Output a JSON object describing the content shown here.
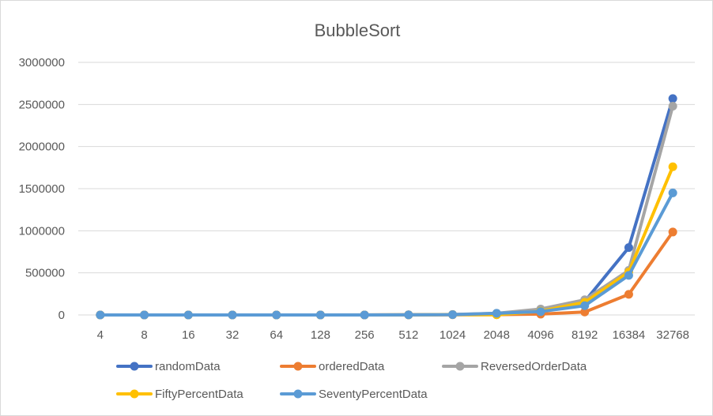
{
  "chart_data": {
    "type": "line",
    "title": "BubbleSort",
    "xlabel": "",
    "ylabel": "",
    "categories": [
      "4",
      "8",
      "16",
      "32",
      "64",
      "128",
      "256",
      "512",
      "1024",
      "2048",
      "4096",
      "8192",
      "16384",
      "32768"
    ],
    "ylim": [
      0,
      3000000
    ],
    "yticks": [
      "0",
      "500000",
      "1000000",
      "1500000",
      "2000000",
      "2500000",
      "3000000"
    ],
    "grid": true,
    "legend_position": "bottom",
    "series": [
      {
        "name": "randomData",
        "color": "#4472C4",
        "values": [
          0,
          0,
          0,
          0,
          0,
          100,
          400,
          1500,
          5000,
          15000,
          50000,
          160000,
          800000,
          2570000
        ]
      },
      {
        "name": "orderedData",
        "color": "#ED7D31",
        "values": [
          0,
          0,
          0,
          0,
          0,
          50,
          200,
          800,
          3000,
          4000,
          10000,
          35000,
          245000,
          985000
        ]
      },
      {
        "name": "ReversedOrderData",
        "color": "#A5A5A5",
        "values": [
          0,
          0,
          0,
          0,
          0,
          100,
          500,
          2000,
          6000,
          20000,
          70000,
          180000,
          530000,
          2480000
        ]
      },
      {
        "name": "FiftyPercentData",
        "color": "#FFC000",
        "values": [
          0,
          0,
          0,
          0,
          0,
          80,
          300,
          1200,
          4000,
          2000,
          45000,
          150000,
          510000,
          1760000
        ]
      },
      {
        "name": "SeventyPercentData",
        "color": "#5B9BD5",
        "values": [
          0,
          0,
          0,
          0,
          0,
          80,
          300,
          1200,
          4000,
          20000,
          40000,
          110000,
          470000,
          1450000
        ]
      }
    ]
  }
}
